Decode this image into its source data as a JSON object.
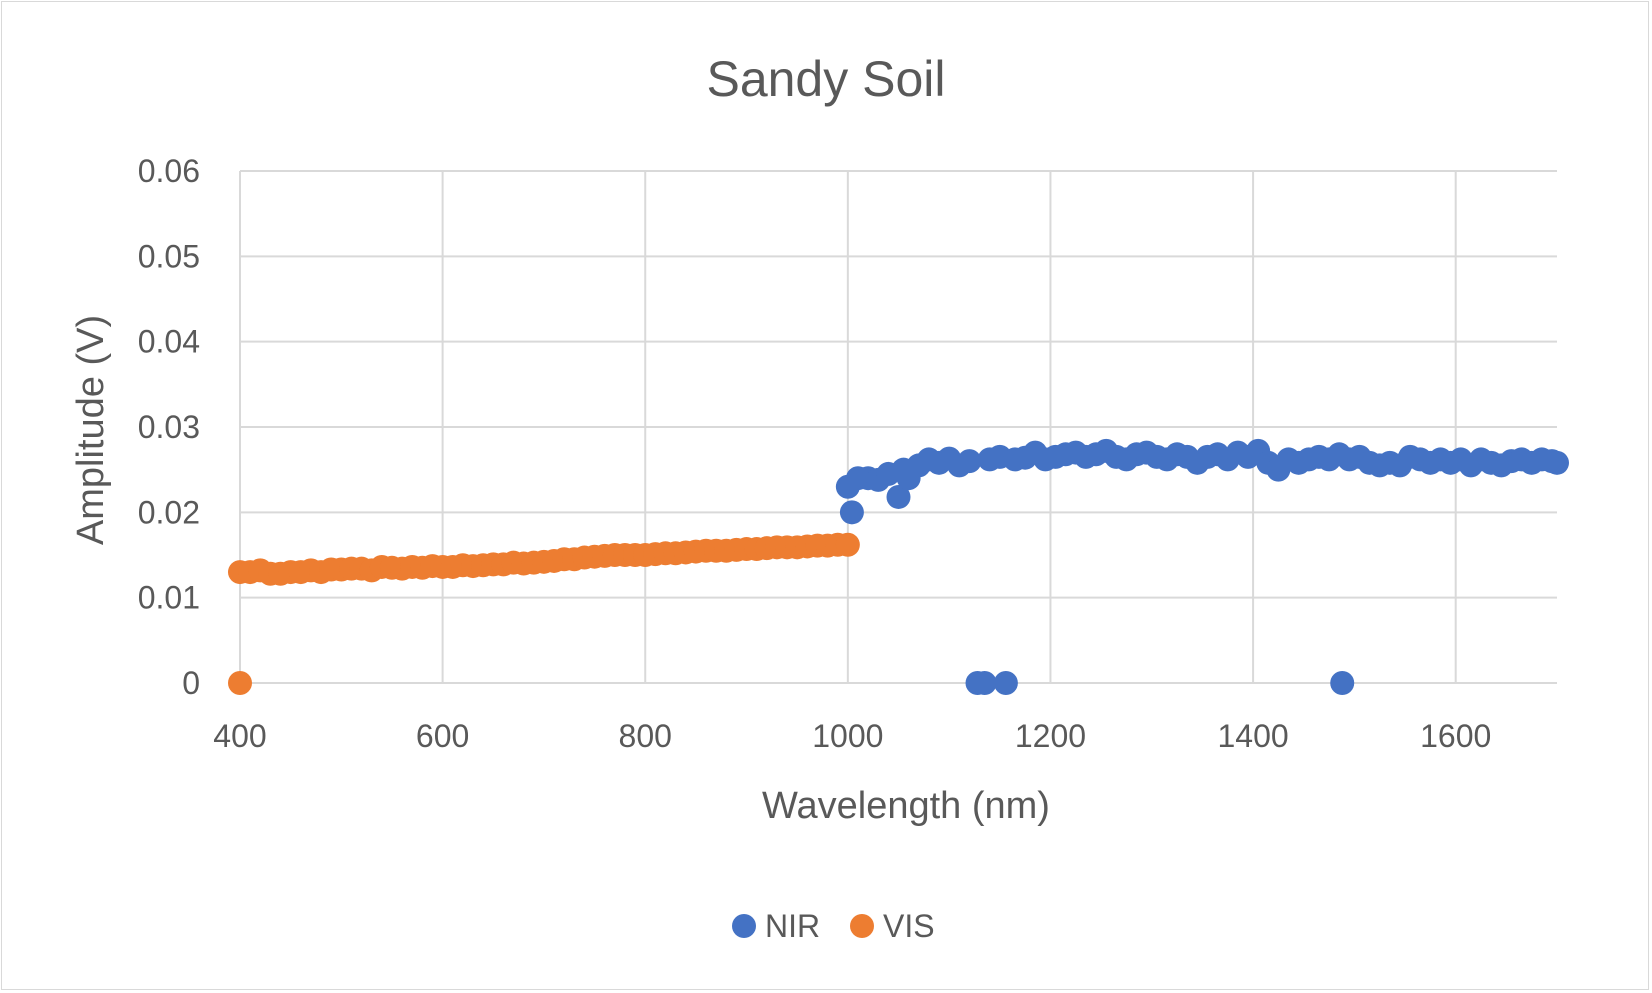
{
  "chart_data": {
    "type": "scatter",
    "title": "Sandy Soil",
    "xlabel": "Wavelength (nm)",
    "ylabel": "Amplitude (V)",
    "xlim": [
      400,
      1700
    ],
    "ylim": [
      0,
      0.06
    ],
    "xticks": [
      400,
      600,
      800,
      1000,
      1200,
      1400,
      1600
    ],
    "yticks": [
      0,
      0.01,
      0.02,
      0.03,
      0.04,
      0.05,
      0.06
    ],
    "ytick_labels": [
      "0",
      "0.01",
      "0.02",
      "0.03",
      "0.04",
      "0.05",
      "0.06"
    ],
    "grid": true,
    "legend_position": "bottom",
    "series": [
      {
        "name": "NIR",
        "color": "#4472C4",
        "points": [
          [
            1000,
            0.023
          ],
          [
            1004,
            0.02
          ],
          [
            1010,
            0.024
          ],
          [
            1020,
            0.024
          ],
          [
            1030,
            0.0238
          ],
          [
            1040,
            0.0245
          ],
          [
            1050,
            0.0218
          ],
          [
            1055,
            0.025
          ],
          [
            1060,
            0.024
          ],
          [
            1070,
            0.0255
          ],
          [
            1080,
            0.0262
          ],
          [
            1090,
            0.0258
          ],
          [
            1100,
            0.0263
          ],
          [
            1110,
            0.0255
          ],
          [
            1120,
            0.026
          ],
          [
            1128,
            0.0
          ],
          [
            1135,
            0.0
          ],
          [
            1140,
            0.0262
          ],
          [
            1150,
            0.0265
          ],
          [
            1156,
            0.0
          ],
          [
            1165,
            0.0262
          ],
          [
            1175,
            0.0264
          ],
          [
            1185,
            0.027
          ],
          [
            1195,
            0.0262
          ],
          [
            1205,
            0.0265
          ],
          [
            1215,
            0.0268
          ],
          [
            1225,
            0.027
          ],
          [
            1235,
            0.0265
          ],
          [
            1245,
            0.0268
          ],
          [
            1255,
            0.0272
          ],
          [
            1265,
            0.0265
          ],
          [
            1275,
            0.0262
          ],
          [
            1285,
            0.0268
          ],
          [
            1295,
            0.027
          ],
          [
            1305,
            0.0265
          ],
          [
            1315,
            0.0262
          ],
          [
            1325,
            0.0268
          ],
          [
            1335,
            0.0265
          ],
          [
            1345,
            0.0258
          ],
          [
            1355,
            0.0265
          ],
          [
            1365,
            0.0268
          ],
          [
            1375,
            0.0262
          ],
          [
            1385,
            0.027
          ],
          [
            1395,
            0.0265
          ],
          [
            1405,
            0.0272
          ],
          [
            1415,
            0.0258
          ],
          [
            1425,
            0.025
          ],
          [
            1435,
            0.0262
          ],
          [
            1445,
            0.0258
          ],
          [
            1455,
            0.0262
          ],
          [
            1465,
            0.0265
          ],
          [
            1475,
            0.0262
          ],
          [
            1485,
            0.0268
          ],
          [
            1488,
            0.0
          ],
          [
            1495,
            0.0262
          ],
          [
            1505,
            0.0265
          ],
          [
            1515,
            0.0258
          ],
          [
            1525,
            0.0255
          ],
          [
            1535,
            0.0258
          ],
          [
            1545,
            0.0255
          ],
          [
            1555,
            0.0265
          ],
          [
            1565,
            0.0262
          ],
          [
            1575,
            0.0258
          ],
          [
            1585,
            0.0262
          ],
          [
            1595,
            0.0258
          ],
          [
            1605,
            0.0262
          ],
          [
            1615,
            0.0255
          ],
          [
            1625,
            0.0262
          ],
          [
            1635,
            0.0258
          ],
          [
            1645,
            0.0255
          ],
          [
            1655,
            0.026
          ],
          [
            1665,
            0.0262
          ],
          [
            1675,
            0.0258
          ],
          [
            1685,
            0.0262
          ],
          [
            1695,
            0.026
          ],
          [
            1700,
            0.0258
          ]
        ]
      },
      {
        "name": "VIS",
        "color": "#ED7D31",
        "points": [
          [
            400,
            0.0
          ],
          [
            400,
            0.013
          ],
          [
            410,
            0.013
          ],
          [
            420,
            0.0132
          ],
          [
            430,
            0.0128
          ],
          [
            440,
            0.0128
          ],
          [
            450,
            0.013
          ],
          [
            460,
            0.013
          ],
          [
            470,
            0.0132
          ],
          [
            480,
            0.013
          ],
          [
            490,
            0.0133
          ],
          [
            500,
            0.0133
          ],
          [
            510,
            0.0134
          ],
          [
            520,
            0.0134
          ],
          [
            530,
            0.0132
          ],
          [
            540,
            0.0136
          ],
          [
            550,
            0.0135
          ],
          [
            560,
            0.0134
          ],
          [
            570,
            0.0136
          ],
          [
            580,
            0.0135
          ],
          [
            590,
            0.0137
          ],
          [
            600,
            0.0136
          ],
          [
            610,
            0.0136
          ],
          [
            620,
            0.0138
          ],
          [
            630,
            0.0137
          ],
          [
            640,
            0.0138
          ],
          [
            650,
            0.0139
          ],
          [
            660,
            0.0139
          ],
          [
            670,
            0.0141
          ],
          [
            680,
            0.014
          ],
          [
            690,
            0.0141
          ],
          [
            700,
            0.0142
          ],
          [
            710,
            0.0143
          ],
          [
            720,
            0.0145
          ],
          [
            730,
            0.0145
          ],
          [
            740,
            0.0147
          ],
          [
            750,
            0.0148
          ],
          [
            760,
            0.0149
          ],
          [
            770,
            0.015
          ],
          [
            780,
            0.015
          ],
          [
            790,
            0.015
          ],
          [
            800,
            0.015
          ],
          [
            810,
            0.0151
          ],
          [
            820,
            0.0152
          ],
          [
            830,
            0.0152
          ],
          [
            840,
            0.0153
          ],
          [
            850,
            0.0154
          ],
          [
            860,
            0.0155
          ],
          [
            870,
            0.0155
          ],
          [
            880,
            0.0155
          ],
          [
            890,
            0.0156
          ],
          [
            900,
            0.0157
          ],
          [
            910,
            0.0157
          ],
          [
            920,
            0.0158
          ],
          [
            930,
            0.0159
          ],
          [
            940,
            0.0159
          ],
          [
            950,
            0.0159
          ],
          [
            960,
            0.016
          ],
          [
            970,
            0.0161
          ],
          [
            980,
            0.0161
          ],
          [
            990,
            0.0162
          ],
          [
            1000,
            0.0162
          ]
        ]
      }
    ]
  }
}
